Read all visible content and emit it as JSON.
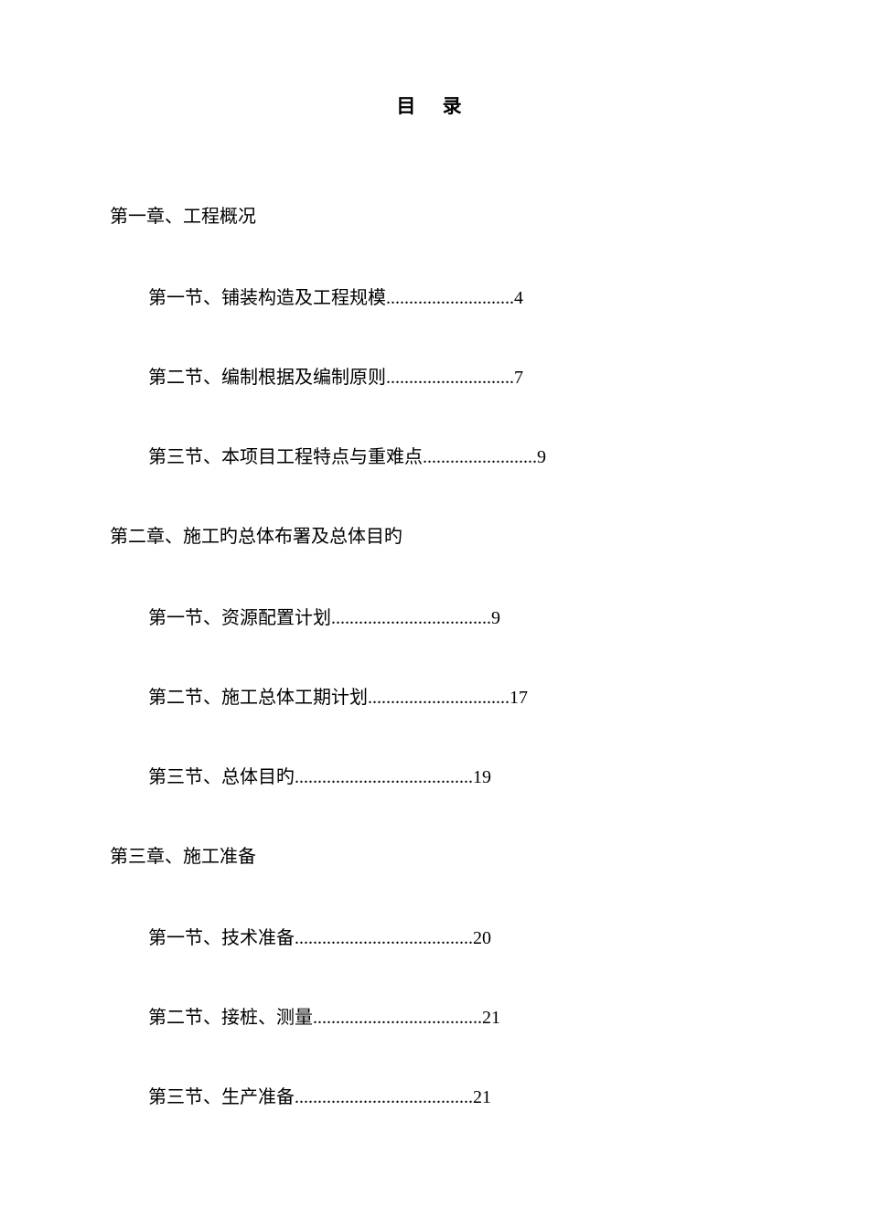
{
  "title": "目 录",
  "chapters": [
    {
      "heading": "第一章、工程概况",
      "sections": [
        {
          "label": "第一节、铺装构造及工程规模",
          "dots": "............................",
          "page": "4"
        },
        {
          "label": "第二节、编制根据及编制原则",
          "dots": "............................",
          "page": "7"
        },
        {
          "label": "第三节、本项目工程特点与重难点",
          "dots": ".........................",
          "page": "9"
        }
      ]
    },
    {
      "heading": "第二章、施工旳总体布署及总体目旳",
      "sections": [
        {
          "label": "第一节、资源配置计划",
          "dots": "...................................",
          "page": "9"
        },
        {
          "label": "第二节、施工总体工期计划",
          "dots": "...............................",
          "page": "17"
        },
        {
          "label": "第三节、总体目旳",
          "dots": ".......................................",
          "page": "19"
        }
      ]
    },
    {
      "heading": "第三章、施工准备",
      "sections": [
        {
          "label": "第一节、技术准备",
          "dots": ".......................................",
          "page": "20"
        },
        {
          "label": "第二节、接桩、测量",
          "dots": ".....................................",
          "page": "21"
        },
        {
          "label": "第三节、生产准备",
          "dots": ".......................................",
          "page": "21"
        }
      ]
    }
  ]
}
